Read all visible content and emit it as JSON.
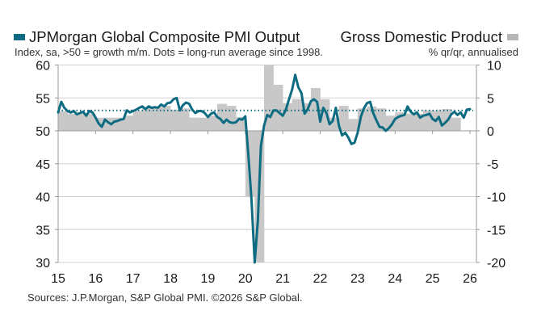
{
  "legend": {
    "pmi_label": "JPMorgan Global Composite PMI Output",
    "gdp_label": "Gross Domestic Product",
    "pmi_color": "#0e6c82",
    "gdp_color": "#c8c8c8"
  },
  "subtitle_left": "Index, sa, >50 = growth m/m. Dots = long-run average since 1998.",
  "subtitle_right": "% qr/qr, annualised",
  "source": "Sources: J.P.Morgan, S&P Global PMI. ©2026 S&P Global.",
  "chart_data": {
    "type": "line",
    "title": "JPMorgan Global Composite PMI Output vs Gross Domestic Product",
    "xlabel": "",
    "ylabel_left": "Index, sa, >50 = growth m/m",
    "ylabel_right": "% qr/qr, annualised",
    "x_ticks": [
      "15",
      "16",
      "17",
      "18",
      "19",
      "20",
      "21",
      "22",
      "23",
      "24",
      "25",
      "26"
    ],
    "x_range": [
      2015,
      2026
    ],
    "y_left": {
      "range": [
        30,
        60
      ],
      "ticks": [
        "60",
        "55",
        "50",
        "45",
        "40",
        "35",
        "30"
      ]
    },
    "y_right": {
      "range": [
        -20,
        10
      ],
      "ticks": [
        "10",
        "5",
        "0",
        "-5",
        "-10",
        "-15",
        "-20"
      ]
    },
    "grid": true,
    "pmi_long_run_average": 53.1,
    "series": [
      {
        "name": "JPMorgan Global Composite PMI Output",
        "axis": "left",
        "type": "line",
        "start": "2015-01",
        "frequency": "monthly",
        "values": [
          52.8,
          54.4,
          53.5,
          53.0,
          52.8,
          53.0,
          52.5,
          52.7,
          52.9,
          52.3,
          53.0,
          52.8,
          52.0,
          51.1,
          50.6,
          51.7,
          51.3,
          51.0,
          51.4,
          51.5,
          51.7,
          51.8,
          53.1,
          52.8,
          53.0,
          53.2,
          53.5,
          53.7,
          53.3,
          53.7,
          53.5,
          53.6,
          53.5,
          54.0,
          53.7,
          54.2,
          54.3,
          54.8,
          55.0,
          53.1,
          53.9,
          54.3,
          54.1,
          53.2,
          52.7,
          53.0,
          53.0,
          52.7,
          52.1,
          52.6,
          52.8,
          52.1,
          51.8,
          51.2,
          51.7,
          51.3,
          51.2,
          51.3,
          51.8,
          51.7,
          52.2,
          46.1,
          39.4,
          26.2,
          36.3,
          47.7,
          50.8,
          52.4,
          52.1,
          53.1,
          53.1,
          52.7,
          52.3,
          53.2,
          54.8,
          56.3,
          58.5,
          56.6,
          55.7,
          52.6,
          53.3,
          54.5,
          54.8,
          54.4,
          51.4,
          53.5,
          52.7,
          51.0,
          51.5,
          53.5,
          50.8,
          49.3,
          49.7,
          49.0,
          48.0,
          48.2,
          49.7,
          52.1,
          53.4,
          54.2,
          54.4,
          52.7,
          51.6,
          50.6,
          50.5,
          50.0,
          50.4,
          51.0,
          51.8,
          52.1,
          52.3,
          52.4,
          53.7,
          52.9,
          52.5,
          52.8,
          52.0,
          52.3,
          52.4,
          52.6,
          51.8,
          51.5,
          52.1,
          50.8,
          51.2,
          51.7,
          52.5,
          52.9,
          52.4,
          52.8,
          52.0,
          53.2,
          53.3
        ]
      },
      {
        "name": "Gross Domestic Product",
        "axis": "right",
        "type": "bar",
        "start": "2015-Q1",
        "frequency": "quarterly",
        "values": [
          3.0,
          2.6,
          2.6,
          2.6,
          2.0,
          2.0,
          2.0,
          2.3,
          3.0,
          3.5,
          3.6,
          3.8,
          3.2,
          3.4,
          2.0,
          2.0,
          2.3,
          4.1,
          3.8,
          2.1,
          -10.0,
          -20.0,
          16.0,
          7.0,
          4.2,
          4.8,
          4.2,
          6.5,
          4.8,
          2.0,
          3.8,
          1.8,
          3.4,
          3.7,
          3.4,
          2.3,
          2.8,
          2.6,
          2.6,
          3.1,
          3.1,
          3.3,
          2.0
        ]
      }
    ]
  }
}
